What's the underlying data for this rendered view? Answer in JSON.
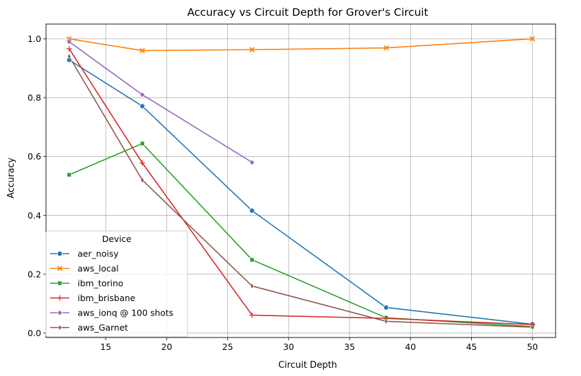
{
  "chart_data": {
    "type": "line",
    "title": "Accuracy vs Circuit Depth for Grover's Circuit",
    "xlabel": "Circuit Depth",
    "ylabel": "Accuracy",
    "xlim": [
      10.1,
      51.9
    ],
    "ylim": [
      -0.015,
      1.05
    ],
    "xticks": [
      15,
      20,
      25,
      30,
      35,
      40,
      45,
      50
    ],
    "yticks": [
      0.0,
      0.2,
      0.4,
      0.6,
      0.8,
      1.0
    ],
    "grid": true,
    "legend_title": "Device",
    "legend_position": "lower-left",
    "series": [
      {
        "name": "aer_noisy",
        "color": "#1f77b4",
        "marker": "circle",
        "points": [
          [
            12,
            0.928
          ],
          [
            18,
            0.771
          ],
          [
            27,
            0.416
          ],
          [
            38,
            0.087
          ],
          [
            50,
            0.03
          ]
        ]
      },
      {
        "name": "aws_local",
        "color": "#ff7f0e",
        "marker": "x",
        "points": [
          [
            12,
            1.0
          ],
          [
            18,
            0.96
          ],
          [
            27,
            0.963
          ],
          [
            38,
            0.969
          ],
          [
            50,
            1.0
          ]
        ]
      },
      {
        "name": "ibm_torino",
        "color": "#2ca02c",
        "marker": "square",
        "points": [
          [
            12,
            0.538
          ],
          [
            18,
            0.644
          ],
          [
            27,
            0.249
          ],
          [
            38,
            0.052
          ],
          [
            50,
            0.022
          ]
        ]
      },
      {
        "name": "ibm_brisbane",
        "color": "#d62728",
        "marker": "plus",
        "points": [
          [
            12,
            0.966
          ],
          [
            18,
            0.578
          ],
          [
            27,
            0.061
          ],
          [
            38,
            0.05
          ],
          [
            50,
            0.029
          ]
        ]
      },
      {
        "name": "aws_ionq @ 100 shots",
        "color": "#9467bd",
        "marker": "diamond",
        "points": [
          [
            12,
            0.99
          ],
          [
            18,
            0.81
          ],
          [
            27,
            0.58
          ]
        ]
      },
      {
        "name": "aws_Garnet",
        "color": "#8c564b",
        "marker": "thin-diamond",
        "points": [
          [
            12,
            0.94
          ],
          [
            18,
            0.52
          ],
          [
            27,
            0.16
          ],
          [
            38,
            0.04
          ],
          [
            50,
            0.02
          ]
        ]
      }
    ]
  }
}
